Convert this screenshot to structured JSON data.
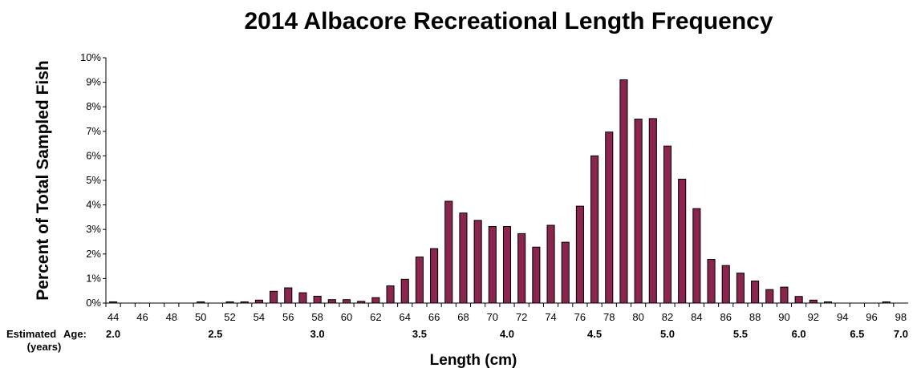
{
  "chart_data": {
    "type": "bar",
    "title": "2014 Albacore Recreational Length Frequency",
    "xlabel": "Length (cm)",
    "ylabel": "Percent of Total Sampled Fish",
    "ylim": [
      0,
      10
    ],
    "y_ticks": [
      "0%",
      "1%",
      "2%",
      "3%",
      "4%",
      "5%",
      "6%",
      "7%",
      "8%",
      "9%",
      "10%"
    ],
    "x_tick_labels": [
      "44",
      "46",
      "48",
      "50",
      "52",
      "54",
      "56",
      "58",
      "60",
      "62",
      "64",
      "66",
      "68",
      "70",
      "72",
      "74",
      "76",
      "78",
      "80",
      "82",
      "84",
      "86",
      "88",
      "90",
      "92",
      "94",
      "96",
      "98"
    ],
    "categories": [
      44,
      45,
      46,
      47,
      48,
      49,
      50,
      51,
      52,
      53,
      54,
      55,
      56,
      57,
      58,
      59,
      60,
      61,
      62,
      63,
      64,
      65,
      66,
      67,
      68,
      69,
      70,
      71,
      72,
      73,
      74,
      75,
      76,
      77,
      78,
      79,
      80,
      81,
      82,
      83,
      84,
      85,
      86,
      87,
      88,
      89,
      90,
      91,
      92,
      93,
      94,
      95,
      96,
      97,
      98
    ],
    "values": [
      0.05,
      0,
      0,
      0,
      0,
      0,
      0.05,
      0,
      0.05,
      0.05,
      0.12,
      0.48,
      0.62,
      0.42,
      0.28,
      0.14,
      0.14,
      0.07,
      0.22,
      0.7,
      0.97,
      1.88,
      2.22,
      4.15,
      3.67,
      3.37,
      3.12,
      3.12,
      2.83,
      2.28,
      3.17,
      2.48,
      3.95,
      6.0,
      6.97,
      9.1,
      7.5,
      7.52,
      6.4,
      5.05,
      3.85,
      1.78,
      1.53,
      1.22,
      0.9,
      0.55,
      0.65,
      0.27,
      0.12,
      0.05,
      0,
      0,
      0,
      0.05,
      0
    ],
    "bar_color": "#8a2550",
    "grid": false,
    "legend": "none",
    "age_axis": {
      "title_line1": "Estimated",
      "title_line2": "Age:",
      "units": "(years)",
      "ticks": [
        {
          "label": "2.0",
          "length": 44
        },
        {
          "label": "2.5",
          "length": 51
        },
        {
          "label": "3.0",
          "length": 58
        },
        {
          "label": "3.5",
          "length": 65
        },
        {
          "label": "4.0",
          "length": 71
        },
        {
          "label": "4.5",
          "length": 77
        },
        {
          "label": "5.0",
          "length": 82
        },
        {
          "label": "5.5",
          "length": 87
        },
        {
          "label": "6.0",
          "length": 91
        },
        {
          "label": "6.5",
          "length": 95
        },
        {
          "label": "7.0",
          "length": 98
        }
      ]
    }
  }
}
